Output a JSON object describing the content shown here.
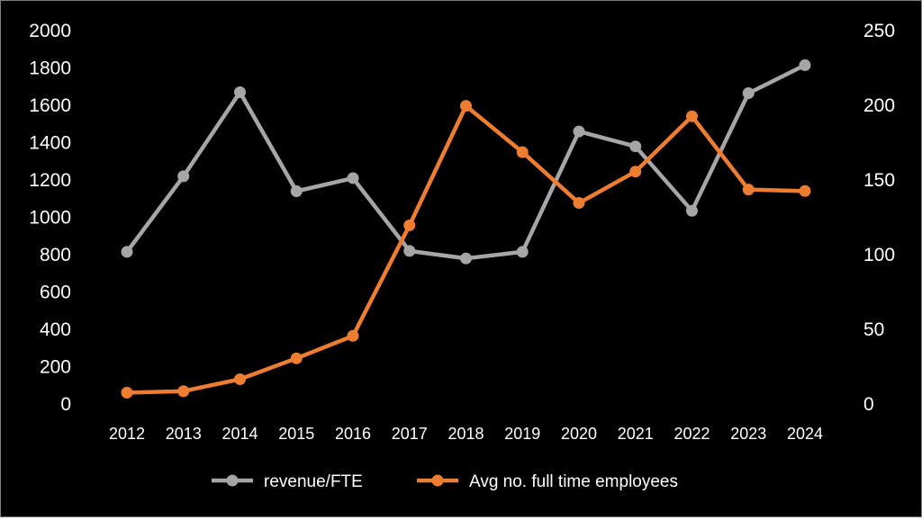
{
  "chart_data": {
    "type": "line",
    "categories": [
      "2012",
      "2013",
      "2014",
      "2015",
      "2016",
      "2017",
      "2018",
      "2019",
      "2020",
      "2021",
      "2022",
      "2023",
      "2024"
    ],
    "y_left": {
      "min": 0,
      "max": 2000,
      "ticks": [
        "0",
        "200",
        "400",
        "600",
        "800",
        "1000",
        "1200",
        "1400",
        "1600",
        "1800",
        "2000"
      ]
    },
    "y_right": {
      "min": 0,
      "max": 250,
      "ticks": [
        "0",
        "50",
        "100",
        "150",
        "200",
        "250"
      ]
    },
    "series": [
      {
        "name": "revenue/FTE",
        "axis": "left",
        "color": "#a6a6a6",
        "values": [
          810,
          1215,
          1665,
          1135,
          1205,
          815,
          775,
          810,
          1455,
          1375,
          1030,
          1660,
          1810
        ]
      },
      {
        "name": "Avg no. full time employees",
        "axis": "right",
        "color": "#ed7d31",
        "values": [
          7,
          8,
          16,
          30,
          45,
          119,
          199,
          168,
          134,
          155,
          192,
          143,
          142
        ]
      }
    ],
    "grid": false,
    "legend": "bottom",
    "background": "#000000",
    "text_color": "#ffffff"
  }
}
